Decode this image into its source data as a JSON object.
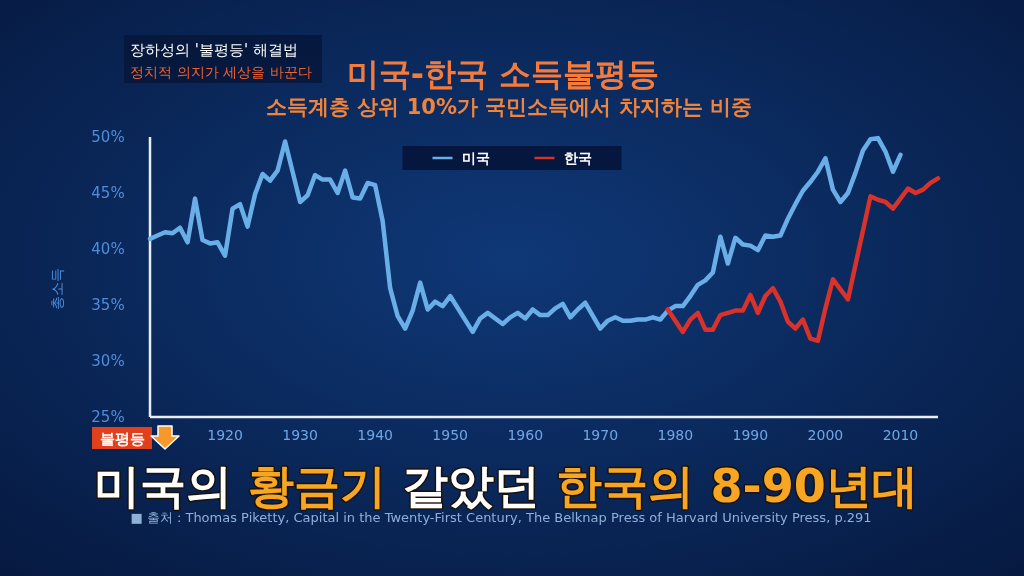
{
  "chart_data": {
    "type": "line",
    "title": "미국-한국 소득불평등",
    "subtitle": "소득계층 상위 10%가 국민소득에서 차지하는 비중",
    "ylabel": "총소득",
    "xlim": [
      1910,
      2015
    ],
    "xticks": [
      1920,
      1930,
      1940,
      1950,
      1960,
      1970,
      1980,
      1990,
      2000,
      2010
    ],
    "ylim": [
      25,
      50
    ],
    "yticks": [
      {
        "value": 25,
        "label": "25%"
      },
      {
        "value": 30,
        "label": "30%"
      },
      {
        "value": 35,
        "label": "35%"
      },
      {
        "value": 40,
        "label": "40%"
      },
      {
        "value": 45,
        "label": "45%"
      },
      {
        "value": 50,
        "label": "50%"
      }
    ],
    "legend": "top",
    "series": [
      {
        "name": "미국",
        "color": "#6aaee8",
        "x": [
          1910,
          1911,
          1912,
          1913,
          1914,
          1915,
          1916,
          1917,
          1918,
          1919,
          1920,
          1921,
          1922,
          1923,
          1924,
          1925,
          1926,
          1927,
          1928,
          1930,
          1931,
          1932,
          1933,
          1934,
          1935,
          1936,
          1937,
          1938,
          1939,
          1940,
          1941,
          1942,
          1943,
          1944,
          1945,
          1946,
          1947,
          1948,
          1949,
          1950,
          1953,
          1954,
          1955,
          1957,
          1958,
          1959,
          1960,
          1961,
          1962,
          1963,
          1964,
          1965,
          1966,
          1967,
          1968,
          1970,
          1971,
          1972,
          1973,
          1974,
          1975,
          1976,
          1977,
          1978,
          1979,
          1980,
          1981,
          1982,
          1983,
          1984,
          1985,
          1986,
          1987,
          1988,
          1989,
          1990,
          1991,
          1992,
          1993,
          1994,
          1995,
          1996,
          1997,
          1998,
          1999,
          2000,
          2001,
          2002,
          2003,
          2004,
          2005,
          2006,
          2007,
          2008,
          2009,
          2010
        ],
        "values": [
          40.9,
          41.2,
          41.5,
          41.4,
          41.9,
          40.6,
          44.5,
          40.8,
          40.5,
          40.6,
          39.4,
          43.6,
          44.0,
          42.0,
          44.9,
          46.7,
          46.1,
          47.0,
          49.6,
          44.2,
          44.8,
          46.6,
          46.2,
          46.2,
          45.0,
          47.0,
          44.6,
          44.5,
          45.9,
          45.7,
          42.5,
          36.5,
          34.0,
          32.9,
          34.5,
          37.0,
          34.6,
          35.3,
          34.9,
          35.8,
          32.6,
          33.8,
          34.3,
          33.3,
          33.9,
          34.3,
          33.8,
          34.6,
          34.1,
          34.1,
          34.7,
          35.1,
          33.9,
          34.6,
          35.2,
          32.9,
          33.6,
          33.9,
          33.6,
          33.6,
          33.7,
          33.7,
          33.9,
          33.7,
          34.5,
          34.9,
          34.9,
          35.8,
          36.8,
          37.2,
          37.9,
          41.1,
          38.7,
          41.0,
          40.4,
          40.3,
          39.9,
          41.2,
          41.1,
          41.2,
          42.7,
          44.0,
          45.2,
          46.0,
          46.9,
          48.1,
          45.3,
          44.2,
          45.0,
          46.8,
          48.8,
          49.8,
          49.9,
          48.7,
          46.9,
          48.4
        ]
      },
      {
        "name": "한국",
        "color": "#d8322a",
        "x": [
          1979,
          1981,
          1982,
          1983,
          1984,
          1985,
          1986,
          1987,
          1988,
          1989,
          1990,
          1991,
          1992,
          1993,
          1994,
          1995,
          1996,
          1997,
          1998,
          1999,
          2000,
          2001,
          2002,
          2003,
          2006,
          2007,
          2008,
          2009,
          2010,
          2011,
          2012,
          2013,
          2014,
          2015
        ],
        "values": [
          34.6,
          32.6,
          33.7,
          34.3,
          32.8,
          32.8,
          34.1,
          34.3,
          34.5,
          34.5,
          35.9,
          34.3,
          35.8,
          36.5,
          35.3,
          33.5,
          32.9,
          33.7,
          32.0,
          31.8,
          34.7,
          37.3,
          36.4,
          35.5,
          44.7,
          44.4,
          44.2,
          43.6,
          44.5,
          45.4,
          45.0,
          45.3,
          45.9,
          46.3
        ]
      }
    ],
    "annotations": [
      "장하성의 '불평등' 해결법",
      "정치적 의지가 세상을 바꾼다",
      "불평등",
      "미국의 황금기 같았던 한국의 8-90년대",
      "■ 출처 : Thomas Piketty, Capital in the Twenty-First Century, The Belknap Press of Harvard University Press, p.291"
    ]
  }
}
